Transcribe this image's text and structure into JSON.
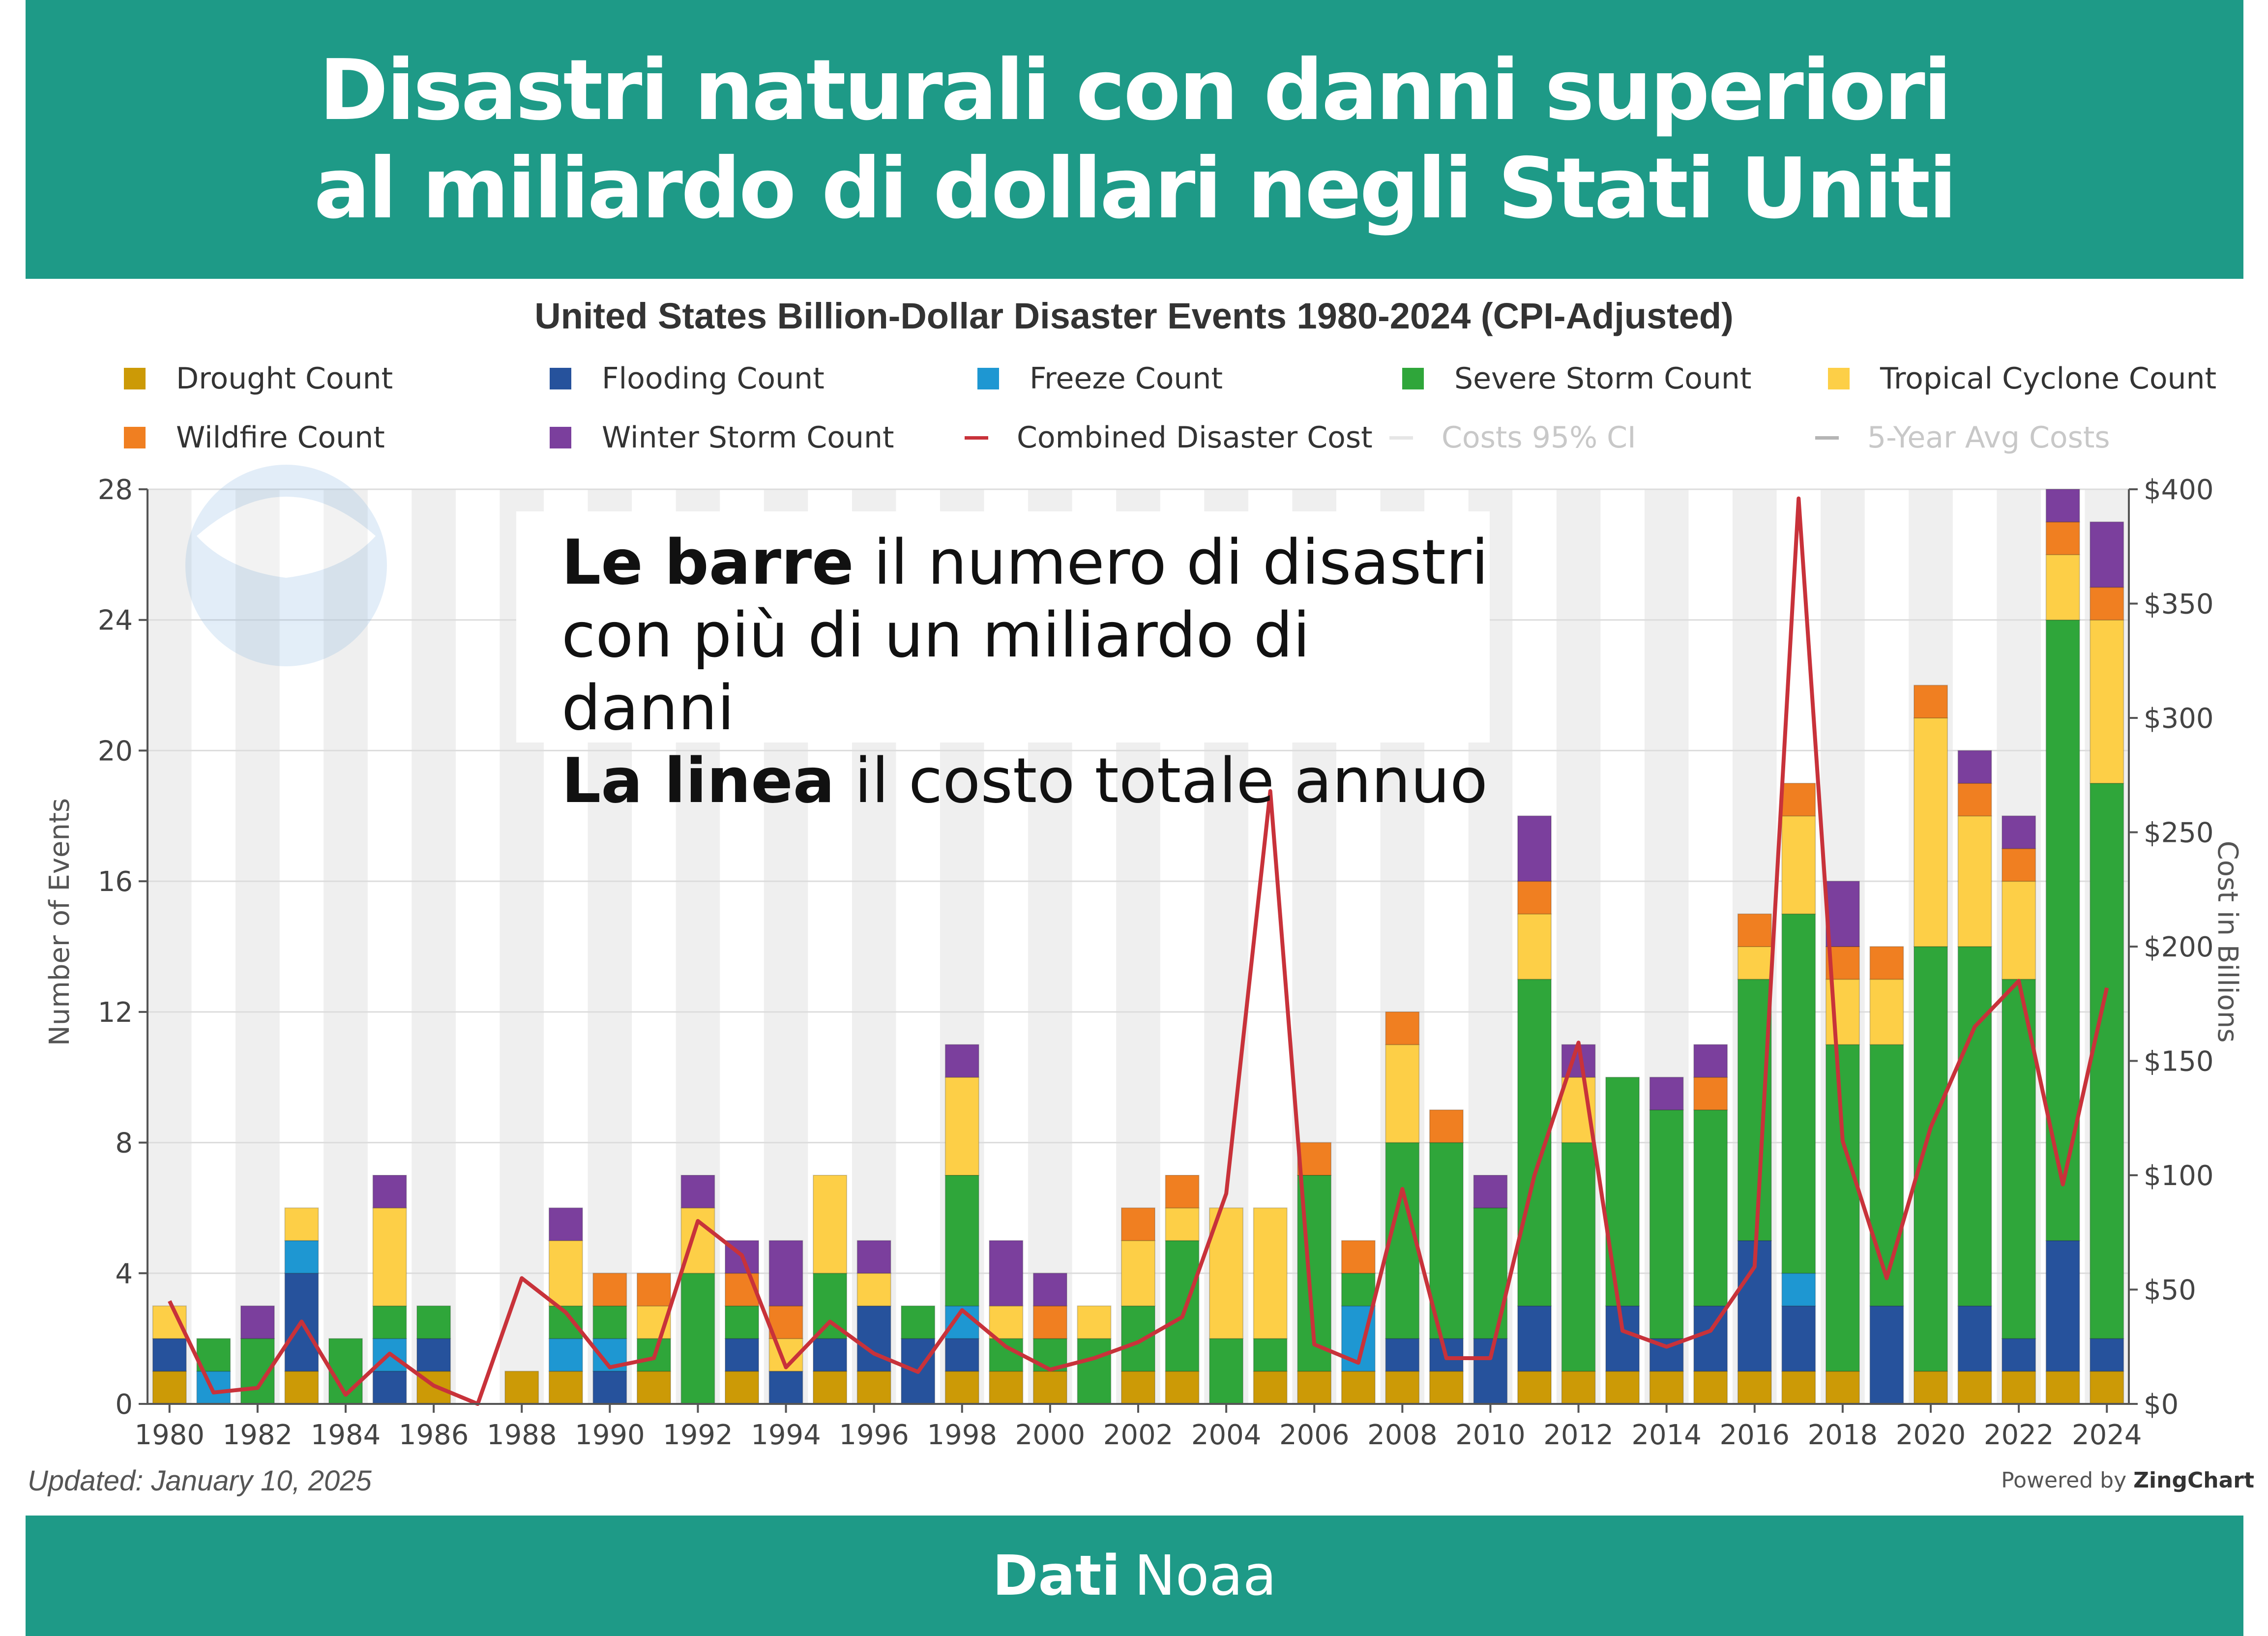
{
  "header": {
    "line1": "Disastri naturali con danni superiori",
    "line2": "al miliardo di dollari negli Stati Uniti"
  },
  "callout": {
    "line1_bold": "Le barre",
    "line1_rest": "il numero di disastri",
    "line2": "con più di un miliardo di danni",
    "line3_bold": "La linea",
    "line3_rest": "il costo totale annuo"
  },
  "updated": "Updated: January 10, 2025",
  "powered": {
    "prefix": "Powered by",
    "brand": "ZingChart"
  },
  "watermark": "NOAA",
  "footer": {
    "bold": "Dati",
    "rest": "Noaa"
  },
  "colors": {
    "header_bg": "#1e9a87",
    "drought": "#cc9a06",
    "flooding": "#26529c",
    "freeze": "#1e97d2",
    "severe_storm": "#2fa63a",
    "tropical_cyclone": "#fdcf47",
    "wildfire": "#f07f21",
    "winter_storm": "#7b3f9d",
    "cost_line": "#c8323a",
    "ci": "#e6e6e6",
    "avg": "#b5b5b5"
  },
  "chart_data": {
    "type": "bar",
    "stacked": true,
    "title": "United States Billion-Dollar Disaster Events 1980-2024 (CPI-Adjusted)",
    "ylabel": "Number of Events",
    "y2label": "Cost in Billions",
    "ylim": [
      0,
      28
    ],
    "yticks": [
      0,
      4,
      8,
      12,
      16,
      20,
      24,
      28
    ],
    "y2lim": [
      0,
      400
    ],
    "y2ticks": [
      "$0",
      "$50",
      "$100",
      "$150",
      "$200",
      "$250",
      "$300",
      "$350",
      "$400"
    ],
    "xticks": [
      "1980",
      "1982",
      "1984",
      "1986",
      "1988",
      "1990",
      "1992",
      "1994",
      "1996",
      "1998",
      "2000",
      "2002",
      "2004",
      "2006",
      "2008",
      "2010",
      "2012",
      "2014",
      "2016",
      "2018",
      "2020",
      "2022",
      "2024"
    ],
    "legend_position": "top",
    "grid": true,
    "categories": [
      1980,
      1981,
      1982,
      1983,
      1984,
      1985,
      1986,
      1987,
      1988,
      1989,
      1990,
      1991,
      1992,
      1993,
      1994,
      1995,
      1996,
      1997,
      1998,
      1999,
      2000,
      2001,
      2002,
      2003,
      2004,
      2005,
      2006,
      2007,
      2008,
      2009,
      2010,
      2011,
      2012,
      2013,
      2014,
      2015,
      2016,
      2017,
      2018,
      2019,
      2020,
      2021,
      2022,
      2023,
      2024
    ],
    "series": [
      {
        "name": "Drought Count",
        "key": "drought",
        "values": [
          1,
          0,
          0,
          1,
          0,
          0,
          1,
          0,
          1,
          1,
          0,
          1,
          0,
          1,
          0,
          1,
          1,
          0,
          1,
          1,
          1,
          0,
          1,
          1,
          0,
          1,
          1,
          1,
          1,
          1,
          0,
          1,
          1,
          1,
          1,
          1,
          1,
          1,
          1,
          0,
          1,
          1,
          1,
          1,
          1
        ]
      },
      {
        "name": "Flooding Count",
        "key": "flooding",
        "values": [
          1,
          0,
          0,
          3,
          0,
          1,
          1,
          0,
          0,
          0,
          1,
          0,
          0,
          1,
          1,
          1,
          2,
          2,
          1,
          0,
          0,
          0,
          0,
          0,
          0,
          0,
          0,
          0,
          1,
          1,
          2,
          2,
          0,
          2,
          1,
          2,
          4,
          2,
          0,
          3,
          0,
          2,
          1,
          4,
          1
        ]
      },
      {
        "name": "Freeze Count",
        "key": "freeze",
        "values": [
          0,
          1,
          0,
          1,
          0,
          1,
          0,
          0,
          0,
          1,
          1,
          0,
          0,
          0,
          0,
          0,
          0,
          0,
          1,
          0,
          0,
          0,
          0,
          0,
          0,
          0,
          0,
          2,
          0,
          0,
          0,
          0,
          0,
          0,
          0,
          0,
          0,
          1,
          0,
          0,
          0,
          0,
          0,
          0,
          0
        ]
      },
      {
        "name": "Severe Storm Count",
        "key": "severe_storm",
        "values": [
          0,
          1,
          2,
          0,
          2,
          1,
          1,
          0,
          0,
          1,
          1,
          1,
          4,
          1,
          0,
          2,
          0,
          1,
          4,
          1,
          1,
          2,
          2,
          4,
          2,
          1,
          6,
          1,
          6,
          6,
          4,
          10,
          7,
          7,
          7,
          6,
          8,
          11,
          10,
          8,
          13,
          11,
          11,
          19,
          17
        ]
      },
      {
        "name": "Tropical Cyclone Count",
        "key": "tropical_cyclone",
        "values": [
          1,
          0,
          0,
          1,
          0,
          3,
          0,
          0,
          0,
          2,
          0,
          1,
          2,
          0,
          1,
          3,
          1,
          0,
          3,
          1,
          0,
          1,
          2,
          1,
          4,
          4,
          0,
          0,
          3,
          0,
          0,
          2,
          2,
          0,
          0,
          0,
          1,
          3,
          2,
          2,
          7,
          4,
          3,
          2,
          5
        ]
      },
      {
        "name": "Wildfire Count",
        "key": "wildfire",
        "values": [
          0,
          0,
          0,
          0,
          0,
          0,
          0,
          0,
          0,
          0,
          1,
          1,
          0,
          1,
          1,
          0,
          0,
          0,
          0,
          0,
          1,
          0,
          1,
          1,
          0,
          0,
          1,
          1,
          1,
          1,
          0,
          1,
          0,
          0,
          0,
          1,
          1,
          1,
          1,
          1,
          1,
          1,
          1,
          1,
          1
        ]
      },
      {
        "name": "Winter Storm Count",
        "key": "winter_storm",
        "values": [
          0,
          0,
          1,
          0,
          0,
          1,
          0,
          0,
          0,
          1,
          0,
          0,
          1,
          1,
          2,
          0,
          1,
          0,
          1,
          2,
          1,
          0,
          0,
          0,
          0,
          0,
          0,
          0,
          0,
          0,
          1,
          2,
          1,
          0,
          1,
          1,
          0,
          0,
          2,
          0,
          0,
          1,
          1,
          1,
          2
        ]
      }
    ],
    "lines": [
      {
        "name": "Combined Disaster Cost",
        "key": "cost_line",
        "axis": "right",
        "values": [
          45,
          5,
          7,
          36,
          4,
          22,
          8,
          0,
          55,
          40,
          16,
          20,
          80,
          65,
          16,
          36,
          22,
          14,
          41,
          25,
          15,
          20,
          27,
          38,
          92,
          268,
          26,
          18,
          94,
          20,
          20,
          100,
          158,
          32,
          25,
          32,
          60,
          396,
          115,
          55,
          121,
          165,
          185,
          96,
          182
        ]
      },
      {
        "name": "Costs 95% CI",
        "key": "ci",
        "values": []
      },
      {
        "name": "5-Year Avg Costs",
        "key": "avg",
        "values": []
      }
    ]
  }
}
